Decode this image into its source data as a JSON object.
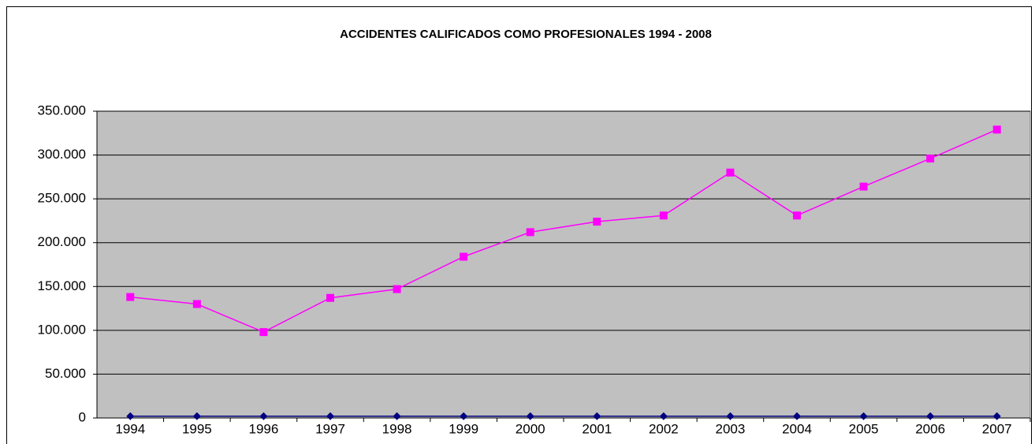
{
  "chart_data": {
    "type": "line",
    "title": "ACCIDENTES CALIFICADOS COMO PROFESIONALES 1994 - 2008",
    "categories": [
      "1994",
      "1995",
      "1996",
      "1997",
      "1998",
      "1999",
      "2000",
      "2001",
      "2002",
      "2003",
      "2004",
      "2005",
      "2006",
      "2007"
    ],
    "series": [
      {
        "color": "#ff00ff",
        "marker": "square",
        "values": [
          138000,
          130000,
          98000,
          137000,
          147000,
          184000,
          212000,
          224000,
          231000,
          280000,
          231000,
          264000,
          296000,
          329000
        ]
      },
      {
        "color": "#000080",
        "marker": "diamond",
        "values": [
          1994,
          1995,
          1996,
          1997,
          1998,
          1999,
          2000,
          2001,
          2002,
          2003,
          2004,
          2005,
          2006,
          2007
        ]
      }
    ],
    "ylim": [
      0,
      350000
    ],
    "yticks": [
      0,
      {
        "value": 50000,
        "label": "50.000"
      },
      {
        "value": 100000,
        "label": "100.000"
      },
      {
        "value": 150000,
        "label": "150.000"
      },
      {
        "value": 200000,
        "label": "200.000"
      },
      {
        "value": 250000,
        "label": "250.000"
      },
      {
        "value": 300000,
        "label": "300.000"
      },
      {
        "value": 350000,
        "label": "350.000"
      }
    ],
    "grid": true,
    "plot_background": "#c0c0c0"
  }
}
